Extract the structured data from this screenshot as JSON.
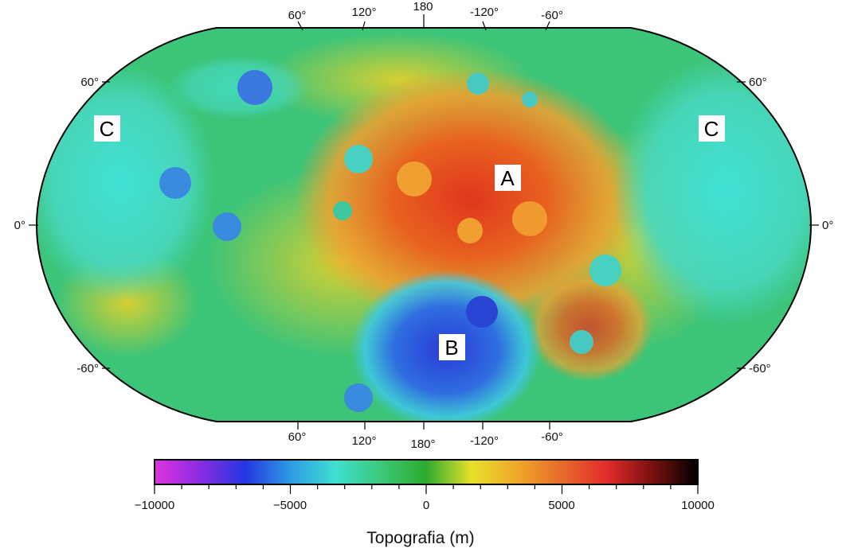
{
  "map": {
    "projection": "robinson",
    "lon_ticks_top": [
      "60°",
      "120°",
      "180",
      "-120°",
      "-60°"
    ],
    "lon_ticks_bottom": [
      "60°",
      "120°",
      "180°",
      "-120°",
      "-60°"
    ],
    "lat_ticks_left": [
      "60°",
      "0°",
      "-60°"
    ],
    "lat_ticks_right": [
      "60°",
      "0°",
      "-60°"
    ],
    "regions": [
      {
        "id": "A",
        "label": "A",
        "color": "#d9401a"
      },
      {
        "id": "B",
        "label": "B",
        "color": "#2c48d6"
      },
      {
        "id": "C-west",
        "label": "C",
        "color": "#3fd6d0"
      },
      {
        "id": "C-east",
        "label": "C",
        "color": "#3fd6d0"
      }
    ]
  },
  "colorbar": {
    "min": -10000,
    "max": 10000,
    "tick_labels": [
      "−10000",
      "−5000",
      "0",
      "5000",
      "10000"
    ],
    "title": "Topografia (m)",
    "stops": [
      "#e033e0",
      "#8a2be2",
      "#2536e0",
      "#2e9ae6",
      "#3fe0d0",
      "#3cc878",
      "#2eaa2e",
      "#e6e02a",
      "#f0a82a",
      "#e86a2a",
      "#e22a2a",
      "#7a1010",
      "#000000"
    ]
  }
}
